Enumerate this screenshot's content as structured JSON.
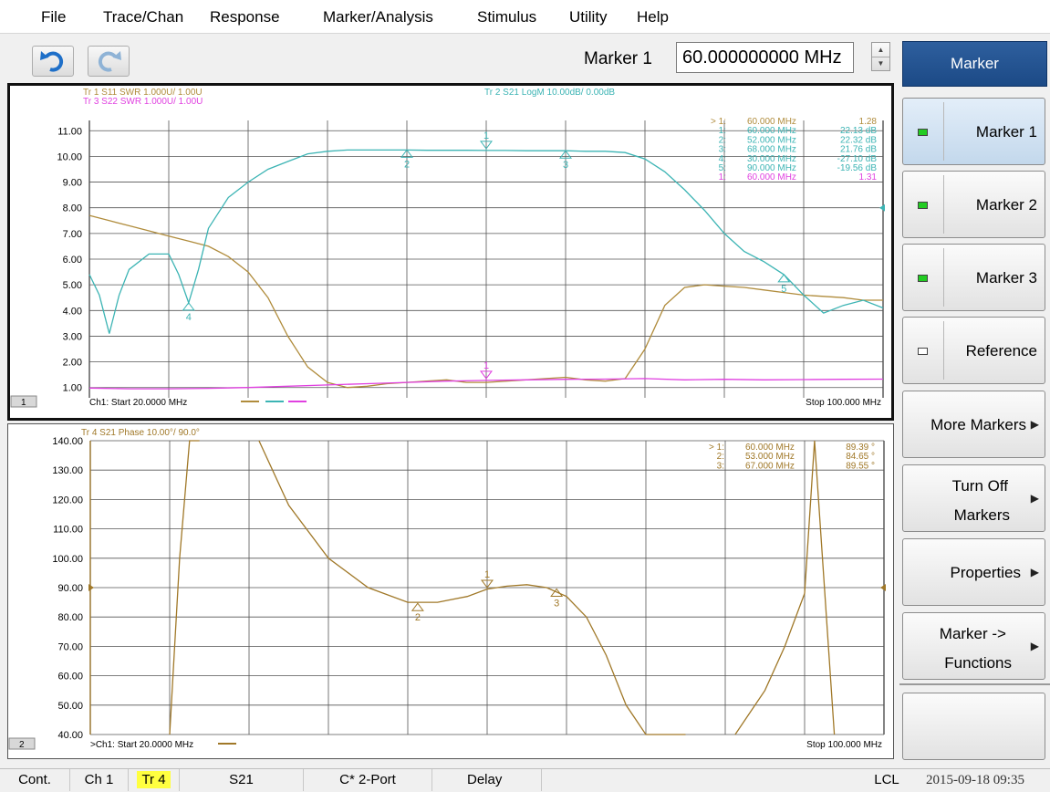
{
  "menu": [
    "File",
    "Trace/Chan",
    "Response",
    "Marker/Analysis",
    "Stimulus",
    "Utility",
    "Help"
  ],
  "toolbar": {
    "marker_label": "Marker 1",
    "marker_value": "60.000000000 MHz"
  },
  "softkeys": {
    "title": "Marker",
    "items": [
      {
        "label": "Marker 1",
        "indicator": "green"
      },
      {
        "label": "Marker 2",
        "indicator": "green"
      },
      {
        "label": "Marker 3",
        "indicator": "green"
      },
      {
        "label": "Reference",
        "indicator": "empty"
      },
      {
        "label": "More Markers",
        "arrow": "▶"
      },
      {
        "label1": "Turn Off",
        "label2": "Markers",
        "arrow": "▶"
      },
      {
        "label": "Properties",
        "arrow": "▶"
      },
      {
        "label1": "Marker ->",
        "label2": "Functions",
        "arrow": "▶"
      },
      {
        "label": ""
      }
    ]
  },
  "status": {
    "cont": "Cont.",
    "ch": "Ch 1",
    "tr": "Tr 4",
    "param": "S21",
    "cal": "C* 2-Port",
    "delay": "Delay",
    "lcl": "LCL",
    "datetime": "2015-09-18 09:35"
  },
  "colors": {
    "tr1": "#b08c3c",
    "tr2": "#3cb4b4",
    "tr3": "#e040e0",
    "tr4": "#a07828"
  },
  "chart_data": [
    {
      "type": "line",
      "window": "1",
      "trace_titles": [
        "Tr 1  S11 SWR 1.000U/  1.00U",
        "Tr 3  S22 SWR 1.000U/  1.00U",
        "Tr 2  S21 LogM 10.00dB/  0.00dB"
      ],
      "yticks": [
        "11.00",
        "10.00",
        "9.00",
        "8.00",
        "7.00",
        "6.00",
        "5.00",
        "4.00",
        "3.00",
        "2.00",
        "1.00"
      ],
      "ylim": [
        0.6,
        11.4
      ],
      "xlim": [
        20,
        100
      ],
      "start_label": "Ch1:  Start  20.0000 MHz",
      "stop_label": "Stop  100.000 MHz",
      "marker_table": [
        {
          "num": "> 1:",
          "freq": "60.000 MHz",
          "val": "1.28",
          "color": "tr1"
        },
        {
          "num": "1:",
          "freq": "60.000 MHz",
          "val": "22.13 dB",
          "color": "tr2"
        },
        {
          "num": "2:",
          "freq": "52.000 MHz",
          "val": "22.32 dB",
          "color": "tr2"
        },
        {
          "num": "3:",
          "freq": "68.000 MHz",
          "val": "21.76 dB",
          "color": "tr2"
        },
        {
          "num": "4:",
          "freq": "30.000 MHz",
          "val": "-27.10 dB",
          "color": "tr2"
        },
        {
          "num": "5:",
          "freq": "90.000 MHz",
          "val": "-19.56 dB",
          "color": "tr2"
        },
        {
          "num": "1:",
          "freq": "60.000 MHz",
          "val": "1.31",
          "color": "tr3"
        }
      ],
      "series": [
        {
          "name": "Tr 1 S11 SWR",
          "color": "tr1",
          "x": [
            20,
            22,
            24,
            26,
            28,
            30,
            32,
            34,
            36,
            38,
            40,
            42,
            44,
            46,
            48,
            50,
            52,
            54,
            56,
            58,
            60,
            62,
            64,
            66,
            68,
            70,
            72,
            74,
            76,
            78,
            80,
            82,
            84,
            86,
            88,
            90,
            92,
            94,
            96,
            98,
            100
          ],
          "y": [
            7.7,
            7.5,
            7.3,
            7.1,
            6.9,
            6.7,
            6.5,
            6.1,
            5.5,
            4.5,
            3.0,
            1.8,
            1.2,
            1.0,
            1.05,
            1.15,
            1.2,
            1.25,
            1.3,
            1.2,
            1.2,
            1.25,
            1.3,
            1.35,
            1.4,
            1.3,
            1.25,
            1.35,
            2.5,
            4.2,
            4.9,
            5.0,
            4.95,
            4.9,
            4.8,
            4.7,
            4.6,
            4.55,
            4.5,
            4.4,
            4.4
          ]
        },
        {
          "name": "Tr 2 S21 LogM",
          "color": "tr2",
          "x": [
            20,
            21,
            22,
            23,
            24,
            26,
            28,
            29,
            30,
            31,
            32,
            34,
            36,
            38,
            40,
            42,
            44,
            46,
            48,
            50,
            52,
            54,
            56,
            58,
            60,
            62,
            64,
            66,
            68,
            70,
            72,
            74,
            76,
            78,
            80,
            82,
            84,
            86,
            88,
            90,
            92,
            94,
            96,
            98,
            100
          ],
          "y": [
            5.4,
            4.6,
            3.1,
            4.6,
            5.6,
            6.2,
            6.2,
            5.4,
            4.3,
            5.6,
            7.2,
            8.4,
            9.0,
            9.5,
            9.8,
            10.1,
            10.2,
            10.25,
            10.25,
            10.25,
            10.25,
            10.24,
            10.24,
            10.24,
            10.23,
            10.23,
            10.22,
            10.22,
            10.22,
            10.2,
            10.2,
            10.15,
            9.9,
            9.4,
            8.7,
            7.9,
            7.0,
            6.3,
            5.9,
            5.4,
            4.6,
            3.9,
            4.2,
            4.4,
            4.1
          ]
        },
        {
          "name": "Tr 3 S22 SWR",
          "color": "tr3",
          "x": [
            20,
            24,
            28,
            32,
            36,
            40,
            44,
            48,
            52,
            56,
            60,
            64,
            68,
            72,
            76,
            80,
            84,
            88,
            92,
            96,
            100
          ],
          "y": [
            0.98,
            0.95,
            0.95,
            0.97,
            1.0,
            1.05,
            1.1,
            1.15,
            1.2,
            1.25,
            1.28,
            1.3,
            1.32,
            1.33,
            1.35,
            1.3,
            1.32,
            1.3,
            1.31,
            1.32,
            1.33
          ]
        }
      ],
      "markers": [
        {
          "label": "1",
          "x": 60,
          "y": 10.23,
          "trace": "tr2"
        },
        {
          "label": "2",
          "x": 52,
          "y": 10.25,
          "trace": "tr2"
        },
        {
          "label": "3",
          "x": 68,
          "y": 10.22,
          "trace": "tr2"
        },
        {
          "label": "4",
          "x": 30,
          "y": 4.3,
          "trace": "tr2"
        },
        {
          "label": "5",
          "x": 90,
          "y": 5.4,
          "trace": "tr2"
        },
        {
          "label": "1",
          "x": 60,
          "y": 1.28,
          "trace": "tr3"
        }
      ]
    },
    {
      "type": "line",
      "window": "2",
      "trace_titles": [
        "Tr 4  S21 Phase 10.00°/  90.0°"
      ],
      "yticks": [
        "140.00",
        "130.00",
        "120.00",
        "110.00",
        "100.00",
        "90.00",
        "80.00",
        "70.00",
        "60.00",
        "50.00",
        "40.00"
      ],
      "ylim": [
        40,
        140
      ],
      "xlim": [
        20,
        100
      ],
      "start_label": ">Ch1:  Start  20.0000 MHz",
      "stop_label": "Stop  100.000 MHz",
      "marker_table": [
        {
          "num": "> 1:",
          "freq": "60.000 MHz",
          "val": "89.39 °",
          "color": "tr4"
        },
        {
          "num": "2:",
          "freq": "53.000 MHz",
          "val": "84.65 °",
          "color": "tr4"
        },
        {
          "num": "3:",
          "freq": "67.000 MHz",
          "val": "89.55 °",
          "color": "tr4"
        }
      ],
      "series": [
        {
          "name": "Tr 4 S21 Phase",
          "color": "tr4",
          "segments": [
            {
              "x": [
                20,
                20
              ],
              "y": [
                40,
                140
              ]
            },
            {
              "x": [
                28,
                29,
                30,
                31
              ],
              "y": [
                40,
                100,
                140,
                140
              ]
            },
            {
              "x": [
                37,
                40,
                44,
                48,
                52,
                55,
                58,
                60,
                62,
                64,
                66,
                68,
                70,
                72,
                74,
                76,
                78,
                80
              ],
              "y": [
                140,
                118,
                100,
                90,
                85,
                85,
                87,
                89.5,
                90.5,
                91,
                90,
                87,
                80,
                67,
                50,
                40,
                40,
                40
              ]
            },
            {
              "x": [
                85,
                88,
                90,
                92
              ],
              "y": [
                40,
                55,
                70,
                88
              ]
            },
            {
              "x": [
                92,
                93,
                95
              ],
              "y": [
                88,
                140,
                40
              ]
            }
          ]
        }
      ],
      "markers": [
        {
          "label": "1",
          "x": 60,
          "y": 89.39,
          "trace": "tr4"
        },
        {
          "label": "2",
          "x": 53,
          "y": 84.65,
          "trace": "tr4"
        },
        {
          "label": "3",
          "x": 67,
          "y": 89.55,
          "trace": "tr4"
        }
      ]
    }
  ]
}
